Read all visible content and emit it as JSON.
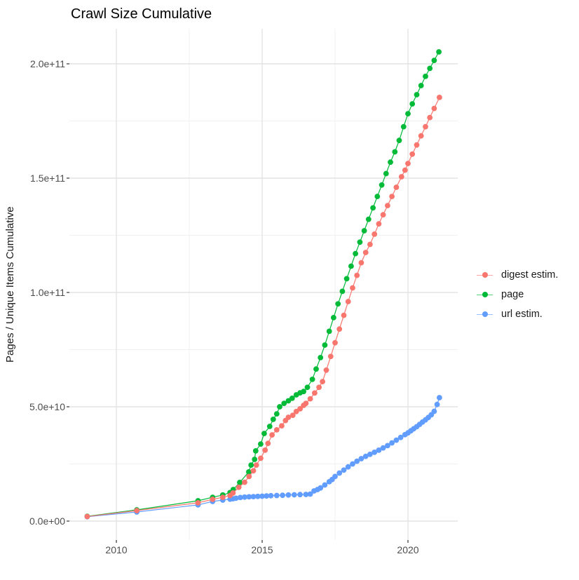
{
  "title": "Crawl Size Cumulative",
  "legend": {
    "items": [
      {
        "id": "digest",
        "label": "digest estim.",
        "color": "#F8766D"
      },
      {
        "id": "page",
        "label": "page",
        "color": "#00BA38"
      },
      {
        "id": "url",
        "label": "url estim.",
        "color": "#619CFF"
      }
    ]
  },
  "colors": {
    "background": "#ffffff",
    "grid_major": "#e3e3e3",
    "grid_minor": "#f0f0f0",
    "axis_text": "#4d4d4d",
    "tick_mark": "#333333",
    "title_text": "#000000"
  },
  "chart_data": {
    "type": "line-scatter",
    "title": "Crawl Size Cumulative",
    "xlabel": "",
    "ylabel": "Pages / Unique Items Cumulative",
    "x_unit": "year (decimal)",
    "y_unit": "pages; point values stored in billions (multiply by 1e9)",
    "x_range": [
      2008.4,
      2021.75
    ],
    "y_range_e9": [
      -8.5,
      215.5
    ],
    "grid": true,
    "legend_position": "right",
    "x_ticks": [
      2010,
      2015,
      2020
    ],
    "x_tick_labels": [
      "2010",
      "2015",
      "2020"
    ],
    "x_minor_ticks": [
      2012.5,
      2017.5
    ],
    "y_ticks_e9": [
      0,
      50,
      100,
      150,
      200
    ],
    "y_tick_labels": [
      "0.0e+00",
      "5.0e+10",
      "1.0e+11",
      "1.5e+11",
      "2.0e+11"
    ],
    "y_minor_ticks_e9": [
      25,
      75,
      125,
      175
    ],
    "series": [
      {
        "id": "digest",
        "name": "digest estim.",
        "color": "#F8766D",
        "points": [
          [
            2009.0,
            2.0
          ],
          [
            2010.7,
            4.6
          ],
          [
            2012.8,
            8.0
          ],
          [
            2013.3,
            9.5
          ],
          [
            2013.65,
            10.4
          ],
          [
            2013.9,
            11.2
          ],
          [
            2014.0,
            12.3
          ],
          [
            2014.2,
            14.8
          ],
          [
            2014.4,
            17.0
          ],
          [
            2014.55,
            19.5
          ],
          [
            2014.7,
            22.0
          ],
          [
            2014.8,
            24.5
          ],
          [
            2014.95,
            27.5
          ],
          [
            2015.1,
            31.0
          ],
          [
            2015.2,
            34.0
          ],
          [
            2015.34,
            37.7
          ],
          [
            2015.5,
            39.9
          ],
          [
            2015.67,
            41.7
          ],
          [
            2015.8,
            44.0
          ],
          [
            2015.9,
            45.4
          ],
          [
            2016.05,
            46.3
          ],
          [
            2016.17,
            47.9
          ],
          [
            2016.3,
            49.1
          ],
          [
            2016.42,
            50.6
          ],
          [
            2016.5,
            51.5
          ],
          [
            2016.65,
            53.5
          ],
          [
            2016.8,
            56.0
          ],
          [
            2016.95,
            58.5
          ],
          [
            2017.07,
            61.0
          ],
          [
            2017.2,
            66.0
          ],
          [
            2017.35,
            72.0
          ],
          [
            2017.5,
            78.0
          ],
          [
            2017.65,
            84.0
          ],
          [
            2017.8,
            90.0
          ],
          [
            2017.95,
            96.0
          ],
          [
            2018.1,
            102.0
          ],
          [
            2018.25,
            107.5
          ],
          [
            2018.4,
            113.0
          ],
          [
            2018.55,
            117.5
          ],
          [
            2018.7,
            121.0
          ],
          [
            2018.85,
            125.5
          ],
          [
            2019.0,
            130.0
          ],
          [
            2019.15,
            134.0
          ],
          [
            2019.3,
            138.0
          ],
          [
            2019.45,
            142.0
          ],
          [
            2019.6,
            146.0
          ],
          [
            2019.78,
            150.6
          ],
          [
            2019.9,
            153.5
          ],
          [
            2020.0,
            156.4
          ],
          [
            2020.15,
            160.5
          ],
          [
            2020.3,
            164.5
          ],
          [
            2020.45,
            168.5
          ],
          [
            2020.6,
            172.5
          ],
          [
            2020.75,
            176.5
          ],
          [
            2020.9,
            180.5
          ],
          [
            2021.08,
            185.3
          ]
        ]
      },
      {
        "id": "page",
        "name": "page",
        "color": "#00BA38",
        "points": [
          [
            2009.0,
            2.1
          ],
          [
            2010.7,
            4.9
          ],
          [
            2012.8,
            8.9
          ],
          [
            2013.3,
            10.4
          ],
          [
            2013.65,
            11.4
          ],
          [
            2013.9,
            12.5
          ],
          [
            2014.01,
            13.8
          ],
          [
            2014.23,
            16.9
          ],
          [
            2014.54,
            21.5
          ],
          [
            2014.62,
            24.5
          ],
          [
            2014.74,
            27.0
          ],
          [
            2014.78,
            30.7
          ],
          [
            2014.95,
            33.7
          ],
          [
            2015.07,
            38.3
          ],
          [
            2015.26,
            41.4
          ],
          [
            2015.38,
            44.5
          ],
          [
            2015.5,
            46.9
          ],
          [
            2015.6,
            50.0
          ],
          [
            2015.75,
            51.5
          ],
          [
            2015.9,
            52.6
          ],
          [
            2016.03,
            53.7
          ],
          [
            2016.17,
            55.2
          ],
          [
            2016.3,
            56.1
          ],
          [
            2016.42,
            56.7
          ],
          [
            2016.55,
            58.5
          ],
          [
            2016.72,
            62.0
          ],
          [
            2016.85,
            66.5
          ],
          [
            2017.0,
            71.5
          ],
          [
            2017.15,
            77.0
          ],
          [
            2017.3,
            83.0
          ],
          [
            2017.45,
            89.0
          ],
          [
            2017.6,
            95.0
          ],
          [
            2017.75,
            100.5
          ],
          [
            2017.9,
            106.0
          ],
          [
            2018.05,
            111.5
          ],
          [
            2018.2,
            117.0
          ],
          [
            2018.35,
            122.0
          ],
          [
            2018.5,
            127.0
          ],
          [
            2018.65,
            132.0
          ],
          [
            2018.8,
            137.0
          ],
          [
            2018.95,
            142.0
          ],
          [
            2019.1,
            147.0
          ],
          [
            2019.25,
            152.0
          ],
          [
            2019.4,
            157.0
          ],
          [
            2019.55,
            161.5
          ],
          [
            2019.7,
            166.5
          ],
          [
            2019.85,
            172.5
          ],
          [
            2020.0,
            178.2
          ],
          [
            2020.15,
            182.5
          ],
          [
            2020.3,
            186.5
          ],
          [
            2020.45,
            190.5
          ],
          [
            2020.6,
            194.5
          ],
          [
            2020.75,
            198.0
          ],
          [
            2020.9,
            201.5
          ],
          [
            2021.06,
            205.2
          ]
        ]
      },
      {
        "id": "url",
        "name": "url estim.",
        "color": "#619CFF",
        "points": [
          [
            2009.0,
            1.9
          ],
          [
            2010.7,
            4.0
          ],
          [
            2012.8,
            7.1
          ],
          [
            2013.3,
            8.6
          ],
          [
            2013.65,
            9.2
          ],
          [
            2013.9,
            9.6
          ],
          [
            2014.0,
            9.8
          ],
          [
            2014.1,
            10.0
          ],
          [
            2014.25,
            10.3
          ],
          [
            2014.4,
            10.5
          ],
          [
            2014.55,
            10.6
          ],
          [
            2014.7,
            10.7
          ],
          [
            2014.85,
            10.8
          ],
          [
            2015.0,
            10.9
          ],
          [
            2015.15,
            11.0
          ],
          [
            2015.3,
            11.1
          ],
          [
            2015.5,
            11.2
          ],
          [
            2015.7,
            11.3
          ],
          [
            2015.9,
            11.4
          ],
          [
            2016.1,
            11.5
          ],
          [
            2016.3,
            11.6
          ],
          [
            2016.5,
            11.65
          ],
          [
            2016.65,
            11.8
          ],
          [
            2016.78,
            13.2
          ],
          [
            2016.9,
            13.8
          ],
          [
            2017.0,
            14.5
          ],
          [
            2017.15,
            15.8
          ],
          [
            2017.3,
            17.2
          ],
          [
            2017.4,
            18.2
          ],
          [
            2017.5,
            19.5
          ],
          [
            2017.65,
            21.0
          ],
          [
            2017.8,
            22.3
          ],
          [
            2017.95,
            23.7
          ],
          [
            2018.1,
            25.0
          ],
          [
            2018.25,
            26.2
          ],
          [
            2018.4,
            27.3
          ],
          [
            2018.55,
            28.3
          ],
          [
            2018.7,
            29.2
          ],
          [
            2018.85,
            30.1
          ],
          [
            2019.0,
            31.0
          ],
          [
            2019.15,
            32.0
          ],
          [
            2019.3,
            33.0
          ],
          [
            2019.45,
            34.2
          ],
          [
            2019.6,
            35.4
          ],
          [
            2019.75,
            36.6
          ],
          [
            2019.9,
            37.8
          ],
          [
            2020.0,
            38.6
          ],
          [
            2020.1,
            39.5
          ],
          [
            2020.2,
            40.4
          ],
          [
            2020.3,
            41.3
          ],
          [
            2020.4,
            42.3
          ],
          [
            2020.5,
            43.3
          ],
          [
            2020.6,
            44.3
          ],
          [
            2020.7,
            45.3
          ],
          [
            2020.8,
            46.5
          ],
          [
            2020.9,
            48.0
          ],
          [
            2021.0,
            51.0
          ],
          [
            2021.08,
            54.0
          ]
        ]
      }
    ]
  }
}
